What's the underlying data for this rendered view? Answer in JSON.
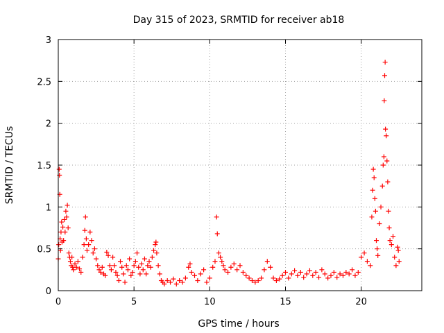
{
  "chart_data": {
    "type": "scatter",
    "title": "Day 315 of 2023, SRMTID for receiver ab18",
    "xlabel": "GPS time / hours",
    "ylabel": "SRMTID / TECUs",
    "xlim": [
      0,
      24
    ],
    "ylim": [
      0,
      3
    ],
    "xticks": [
      0,
      5,
      10,
      15,
      20
    ],
    "yticks": [
      0,
      0.5,
      1,
      1.5,
      2,
      2.5,
      3
    ],
    "xtick_labels": [
      "0",
      "5",
      "10",
      "15",
      "20"
    ],
    "ytick_labels": [
      "0",
      "0.5",
      "1",
      "1.5",
      "2",
      "2.5",
      "3"
    ],
    "grid": true,
    "marker": "+",
    "series": [
      {
        "name": "SRMTID",
        "color": "#ff0000",
        "points": [
          [
            0.0,
            0.38
          ],
          [
            0.03,
            0.55
          ],
          [
            0.06,
            1.45
          ],
          [
            0.08,
            1.38
          ],
          [
            0.1,
            1.15
          ],
          [
            0.12,
            0.62
          ],
          [
            0.15,
            0.48
          ],
          [
            0.18,
            0.7
          ],
          [
            0.22,
            0.82
          ],
          [
            0.25,
            0.58
          ],
          [
            0.3,
            0.76
          ],
          [
            0.35,
            0.6
          ],
          [
            0.4,
            0.85
          ],
          [
            0.45,
            0.7
          ],
          [
            0.5,
            0.95
          ],
          [
            0.55,
            0.88
          ],
          [
            0.6,
            1.02
          ],
          [
            0.65,
            0.75
          ],
          [
            0.7,
            0.45
          ],
          [
            0.75,
            0.4
          ],
          [
            0.8,
            0.35
          ],
          [
            0.85,
            0.3
          ],
          [
            0.9,
            0.4
          ],
          [
            0.95,
            0.28
          ],
          [
            1.0,
            0.25
          ],
          [
            1.1,
            0.32
          ],
          [
            1.2,
            0.28
          ],
          [
            1.3,
            0.35
          ],
          [
            1.4,
            0.26
          ],
          [
            1.5,
            0.22
          ],
          [
            1.6,
            0.4
          ],
          [
            1.7,
            0.55
          ],
          [
            1.75,
            0.72
          ],
          [
            1.8,
            0.88
          ],
          [
            1.85,
            0.62
          ],
          [
            1.9,
            0.48
          ],
          [
            2.0,
            0.55
          ],
          [
            2.1,
            0.7
          ],
          [
            2.2,
            0.6
          ],
          [
            2.3,
            0.45
          ],
          [
            2.4,
            0.5
          ],
          [
            2.5,
            0.38
          ],
          [
            2.6,
            0.3
          ],
          [
            2.7,
            0.25
          ],
          [
            2.8,
            0.22
          ],
          [
            2.9,
            0.28
          ],
          [
            3.0,
            0.2
          ],
          [
            3.1,
            0.18
          ],
          [
            3.2,
            0.46
          ],
          [
            3.3,
            0.42
          ],
          [
            3.4,
            0.3
          ],
          [
            3.5,
            0.25
          ],
          [
            3.6,
            0.4
          ],
          [
            3.7,
            0.3
          ],
          [
            3.8,
            0.22
          ],
          [
            3.9,
            0.18
          ],
          [
            4.0,
            0.12
          ],
          [
            4.1,
            0.35
          ],
          [
            4.2,
            0.28
          ],
          [
            4.3,
            0.2
          ],
          [
            4.4,
            0.1
          ],
          [
            4.5,
            0.3
          ],
          [
            4.6,
            0.25
          ],
          [
            4.7,
            0.38
          ],
          [
            4.8,
            0.18
          ],
          [
            4.9,
            0.22
          ],
          [
            5.0,
            0.3
          ],
          [
            5.1,
            0.35
          ],
          [
            5.2,
            0.45
          ],
          [
            5.3,
            0.28
          ],
          [
            5.4,
            0.2
          ],
          [
            5.5,
            0.32
          ],
          [
            5.6,
            0.25
          ],
          [
            5.7,
            0.38
          ],
          [
            5.8,
            0.2
          ],
          [
            5.9,
            0.3
          ],
          [
            6.0,
            0.35
          ],
          [
            6.1,
            0.28
          ],
          [
            6.2,
            0.4
          ],
          [
            6.3,
            0.48
          ],
          [
            6.4,
            0.55
          ],
          [
            6.45,
            0.58
          ],
          [
            6.5,
            0.45
          ],
          [
            6.6,
            0.3
          ],
          [
            6.7,
            0.2
          ],
          [
            6.8,
            0.12
          ],
          [
            6.9,
            0.1
          ],
          [
            7.0,
            0.08
          ],
          [
            7.2,
            0.12
          ],
          [
            7.4,
            0.1
          ],
          [
            7.6,
            0.14
          ],
          [
            7.8,
            0.08
          ],
          [
            8.0,
            0.12
          ],
          [
            8.2,
            0.1
          ],
          [
            8.4,
            0.15
          ],
          [
            8.6,
            0.28
          ],
          [
            8.7,
            0.32
          ],
          [
            8.8,
            0.22
          ],
          [
            9.0,
            0.18
          ],
          [
            9.2,
            0.12
          ],
          [
            9.4,
            0.2
          ],
          [
            9.6,
            0.25
          ],
          [
            9.8,
            0.1
          ],
          [
            10.0,
            0.15
          ],
          [
            10.2,
            0.28
          ],
          [
            10.35,
            0.35
          ],
          [
            10.45,
            0.88
          ],
          [
            10.5,
            0.68
          ],
          [
            10.6,
            0.45
          ],
          [
            10.7,
            0.4
          ],
          [
            10.8,
            0.35
          ],
          [
            10.9,
            0.3
          ],
          [
            11.0,
            0.25
          ],
          [
            11.2,
            0.22
          ],
          [
            11.4,
            0.28
          ],
          [
            11.6,
            0.32
          ],
          [
            11.8,
            0.25
          ],
          [
            12.0,
            0.3
          ],
          [
            12.2,
            0.22
          ],
          [
            12.4,
            0.18
          ],
          [
            12.6,
            0.15
          ],
          [
            12.8,
            0.12
          ],
          [
            13.0,
            0.1
          ],
          [
            13.2,
            0.12
          ],
          [
            13.4,
            0.15
          ],
          [
            13.6,
            0.25
          ],
          [
            13.8,
            0.35
          ],
          [
            14.0,
            0.28
          ],
          [
            14.2,
            0.15
          ],
          [
            14.4,
            0.12
          ],
          [
            14.6,
            0.14
          ],
          [
            14.8,
            0.18
          ],
          [
            15.0,
            0.22
          ],
          [
            15.2,
            0.15
          ],
          [
            15.4,
            0.2
          ],
          [
            15.6,
            0.24
          ],
          [
            15.8,
            0.18
          ],
          [
            16.0,
            0.22
          ],
          [
            16.2,
            0.16
          ],
          [
            16.4,
            0.2
          ],
          [
            16.6,
            0.24
          ],
          [
            16.8,
            0.18
          ],
          [
            17.0,
            0.22
          ],
          [
            17.2,
            0.16
          ],
          [
            17.4,
            0.25
          ],
          [
            17.6,
            0.2
          ],
          [
            17.8,
            0.15
          ],
          [
            18.0,
            0.18
          ],
          [
            18.2,
            0.22
          ],
          [
            18.4,
            0.16
          ],
          [
            18.6,
            0.2
          ],
          [
            18.8,
            0.18
          ],
          [
            19.0,
            0.22
          ],
          [
            19.2,
            0.2
          ],
          [
            19.4,
            0.25
          ],
          [
            19.6,
            0.18
          ],
          [
            19.8,
            0.22
          ],
          [
            20.0,
            0.4
          ],
          [
            20.2,
            0.45
          ],
          [
            20.4,
            0.35
          ],
          [
            20.6,
            0.3
          ],
          [
            20.7,
            0.88
          ],
          [
            20.75,
            1.2
          ],
          [
            20.8,
            1.45
          ],
          [
            20.85,
            1.35
          ],
          [
            20.9,
            1.1
          ],
          [
            20.95,
            0.95
          ],
          [
            21.0,
            0.6
          ],
          [
            21.05,
            0.5
          ],
          [
            21.1,
            0.42
          ],
          [
            21.2,
            0.8
          ],
          [
            21.3,
            1.0
          ],
          [
            21.4,
            1.25
          ],
          [
            21.45,
            1.5
          ],
          [
            21.5,
            1.6
          ],
          [
            21.52,
            2.27
          ],
          [
            21.55,
            2.57
          ],
          [
            21.58,
            2.73
          ],
          [
            21.6,
            1.93
          ],
          [
            21.65,
            1.85
          ],
          [
            21.7,
            1.55
          ],
          [
            21.75,
            1.3
          ],
          [
            21.8,
            0.95
          ],
          [
            21.85,
            0.75
          ],
          [
            21.9,
            0.6
          ],
          [
            22.0,
            0.55
          ],
          [
            22.1,
            0.65
          ],
          [
            22.2,
            0.4
          ],
          [
            22.3,
            0.3
          ],
          [
            22.4,
            0.52
          ],
          [
            22.45,
            0.48
          ],
          [
            22.5,
            0.35
          ]
        ]
      }
    ]
  }
}
